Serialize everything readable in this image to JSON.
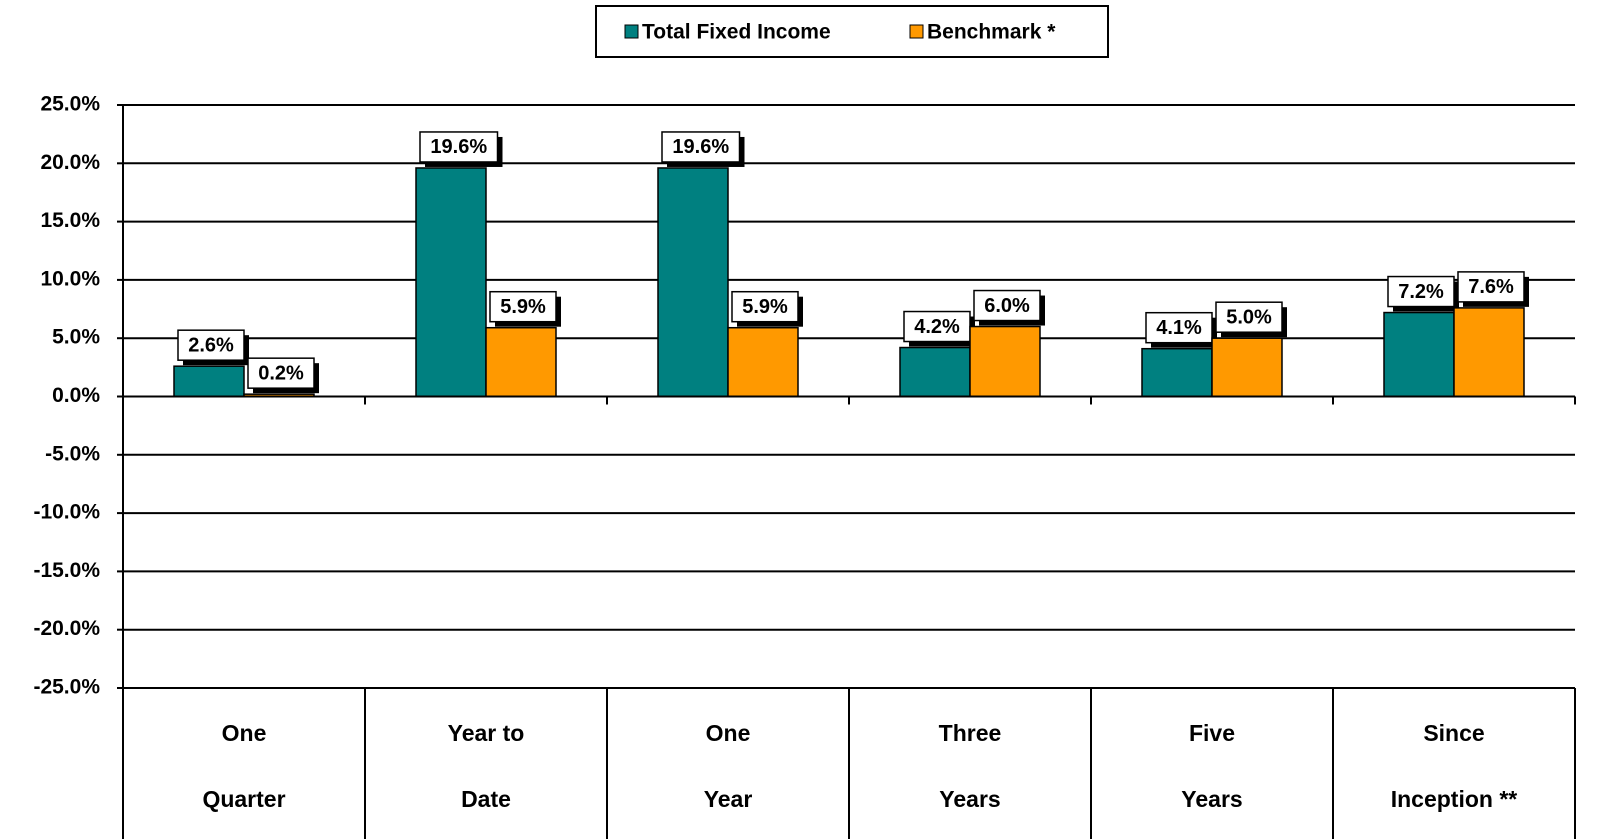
{
  "chart_data": {
    "type": "bar",
    "categories": [
      "One\nQuarter",
      "Year to\nDate",
      "One\nYear",
      "Three\nYears",
      "Five\nYears",
      "Since\nInception **"
    ],
    "series": [
      {
        "name": "Total Fixed Income",
        "color": "#008080",
        "values": [
          2.6,
          19.6,
          19.6,
          4.2,
          4.1,
          7.2
        ],
        "value_labels": [
          "2.6%",
          "19.6%",
          "19.6%",
          "4.2%",
          "4.1%",
          "7.2%"
        ]
      },
      {
        "name": "Benchmark *",
        "color": "#FF9900",
        "values": [
          0.2,
          5.9,
          5.9,
          6.0,
          5.0,
          7.6
        ],
        "value_labels": [
          "0.2%",
          "5.9%",
          "5.9%",
          "6.0%",
          "5.0%",
          "7.6%"
        ]
      }
    ],
    "ylim": [
      -25,
      25
    ],
    "yticks": [
      {
        "value": -25,
        "label": "-25.0%"
      },
      {
        "value": -20,
        "label": "-20.0%"
      },
      {
        "value": -15,
        "label": "-15.0%"
      },
      {
        "value": -10,
        "label": "-10.0%"
      },
      {
        "value": -5,
        "label": "-5.0%"
      },
      {
        "value": 0,
        "label": "0.0%"
      },
      {
        "value": 5,
        "label": "5.0%"
      },
      {
        "value": 10,
        "label": "10.0%"
      },
      {
        "value": 15,
        "label": "15.0%"
      },
      {
        "value": 20,
        "label": "20.0%"
      },
      {
        "value": 25,
        "label": "25.0%"
      }
    ],
    "grid": true,
    "legend": "top"
  }
}
